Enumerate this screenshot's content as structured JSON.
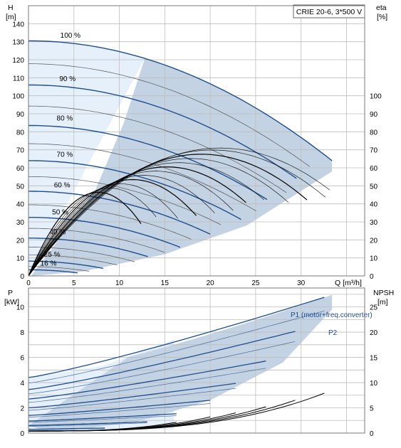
{
  "chart_data": [
    {
      "type": "line",
      "title": "CRIE 20-6, 3*500 V",
      "left_axis_label": "H",
      "left_axis_unit": "[m]",
      "right_axis_label": "eta",
      "right_axis_unit": "[%]",
      "x_axis_label": "Q [m³/h]",
      "xlim": [
        0,
        37
      ],
      "ylim": [
        0,
        150
      ],
      "eta_lim": [
        0,
        150
      ],
      "x_ticks": [
        "0",
        "5",
        "10",
        "15",
        "20",
        "25",
        "30"
      ],
      "y_ticks": [
        "0",
        "10",
        "20",
        "30",
        "40",
        "50",
        "60",
        "70",
        "80",
        "90",
        "100",
        "110",
        "120",
        "130",
        "140"
      ],
      "eta_ticks": [
        "0",
        "10",
        "20",
        "30",
        "40",
        "50",
        "60",
        "70",
        "80",
        "90",
        "100"
      ],
      "grid": true,
      "colors": {
        "head": "#1f4e8c",
        "eta": "#000000",
        "op_area": "#c3d3e3",
        "light_area": "#e6f0fb",
        "thin": "#555555"
      },
      "head_curves": [
        {
          "label": "100 %",
          "q_max": 33.4,
          "shut_off": 130.5,
          "label_q": 3.5,
          "label_h": 131
        },
        {
          "label": "90 %",
          "q_max": 30.1,
          "shut_off": 106,
          "label_q": 3.4,
          "label_h": 107
        },
        {
          "label": "80 %",
          "q_max": 26.8,
          "shut_off": 83.5,
          "label_q": 3.1,
          "label_h": 85
        },
        {
          "label": "70 %",
          "q_max": 23.4,
          "shut_off": 64,
          "label_q": 3.1,
          "label_h": 65
        },
        {
          "label": "60 %",
          "q_max": 20.0,
          "shut_off": 47,
          "label_q": 2.8,
          "label_h": 48
        },
        {
          "label": "50 %",
          "q_max": 16.7,
          "shut_off": 32.5,
          "label_q": 2.6,
          "label_h": 33
        },
        {
          "label": "40 %",
          "q_max": 13.4,
          "shut_off": 21,
          "label_q": 2.3,
          "label_h": 22
        },
        {
          "label": "25 %",
          "q_max": 8.4,
          "shut_off": 8.2,
          "label_q": 1.7,
          "label_h": 9.5
        },
        {
          "label": "16 %",
          "q_max": 5.4,
          "shut_off": 3.4,
          "label_q": 1.3,
          "label_h": 4.5
        }
      ],
      "thin_curve_ratios": [
        0.95,
        0.85,
        0.75,
        0.65,
        0.55,
        0.45,
        0.35,
        0.3,
        0.2
      ],
      "eta_curve": {
        "q_peak": 21,
        "eta_peak": 71
      }
    },
    {
      "type": "line",
      "left_axis_label": "P",
      "left_axis_unit": "[kW]",
      "right_axis_label": "NPSH",
      "right_axis_unit": "[m]",
      "xlim": [
        0,
        37
      ],
      "ylim": [
        0,
        11.5
      ],
      "npsh_lim": [
        0,
        28.75
      ],
      "y_ticks": [
        "0",
        "2",
        "4",
        "6",
        "8",
        "10"
      ],
      "npsh_ticks": [
        "0",
        "5",
        "10",
        "15",
        "20",
        "25"
      ],
      "grid": true,
      "legend_p1": "P1 (motor+freq.converter)",
      "legend_p2": "P2",
      "power_curves": [
        {
          "speed": 1.0,
          "p1_start": 4.4,
          "q_max": 33.4,
          "p1_end": 10.95
        },
        {
          "speed": 0.9,
          "p1_start": 3.45,
          "q_max": 30.1,
          "p1_end": 8.2
        },
        {
          "speed": 0.8,
          "p1_start": 2.7,
          "q_max": 26.8,
          "p1_end": 5.8
        },
        {
          "speed": 0.7,
          "p1_start": 2.0,
          "q_max": 23.4,
          "p1_end": 4.0
        },
        {
          "speed": 0.6,
          "p1_start": 1.4,
          "q_max": 20.0,
          "p1_end": 2.6
        },
        {
          "speed": 0.5,
          "p1_start": 0.95,
          "q_max": 16.7,
          "p1_end": 1.55
        },
        {
          "speed": 0.4,
          "p1_start": 0.6,
          "q_max": 13.4,
          "p1_end": 0.9
        },
        {
          "speed": 0.25,
          "p1_start": 0.3,
          "q_max": 8.4,
          "p1_end": 0.4
        },
        {
          "speed": 0.16,
          "p1_start": 0.18,
          "q_max": 5.4,
          "p1_end": 0.2
        }
      ],
      "npsh_curve_ends": [
        {
          "q_max": 33.4,
          "npsh": 8.5
        },
        {
          "q_max": 30.1,
          "npsh": 7.0
        },
        {
          "q_max": 26.8,
          "npsh": 5.6
        },
        {
          "q_max": 23.4,
          "npsh": 4.3
        },
        {
          "q_max": 20.0,
          "npsh": 3.2
        },
        {
          "q_max": 16.7,
          "npsh": 2.3
        }
      ]
    }
  ]
}
